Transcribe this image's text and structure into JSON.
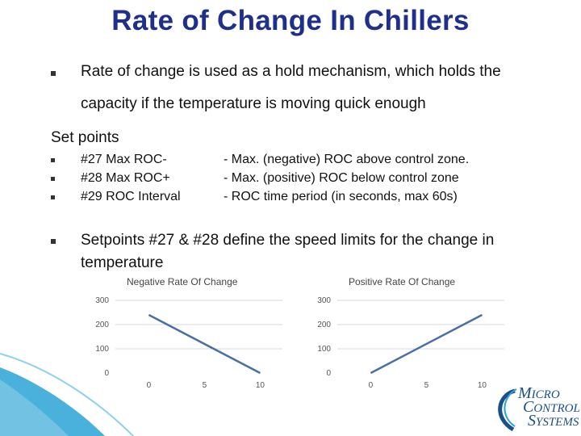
{
  "slide": {
    "title": "Rate of Change In Chillers",
    "intro_line1": "Rate of change is used as a hold mechanism, which holds the",
    "intro_line2": "capacity if the temperature is moving quick enough",
    "set_points_heading": "Set points",
    "set_points": [
      {
        "label": "#27 Max ROC-",
        "description": "- Max. (negative) ROC above control zone."
      },
      {
        "label": "#28 Max ROC+",
        "description": "- Max. (positive) ROC below control zone"
      },
      {
        "label": "#29 ROC Interval",
        "description": "- ROC time period (in seconds, max 60s)"
      }
    ],
    "define_line1": "Setpoints #27 & #28 define the speed limits for the change in",
    "define_line2": "temperature"
  },
  "logo": {
    "text": "MICRO CONTROL SYSTEMS",
    "color": "#1b4f8a"
  },
  "colors": {
    "title": "#1f2f8c",
    "line": "#4a6fa5",
    "wave": "#2aa3d6"
  },
  "chart_data": [
    {
      "type": "line",
      "title": "Negative Rate Of Change",
      "x": [
        0,
        10
      ],
      "y": [
        240,
        0
      ],
      "xlim": [
        -3,
        12
      ],
      "ylim": [
        0,
        300
      ],
      "xticks": [
        0,
        5,
        10
      ],
      "yticks": [
        0,
        100,
        200,
        300
      ],
      "xlabel": "",
      "ylabel": ""
    },
    {
      "type": "line",
      "title": "Positive Rate Of Change",
      "x": [
        0,
        10
      ],
      "y": [
        0,
        240
      ],
      "xlim": [
        -3,
        12
      ],
      "ylim": [
        0,
        300
      ],
      "xticks": [
        0,
        5,
        10
      ],
      "yticks": [
        0,
        100,
        200,
        300
      ],
      "xlabel": "",
      "ylabel": ""
    }
  ]
}
